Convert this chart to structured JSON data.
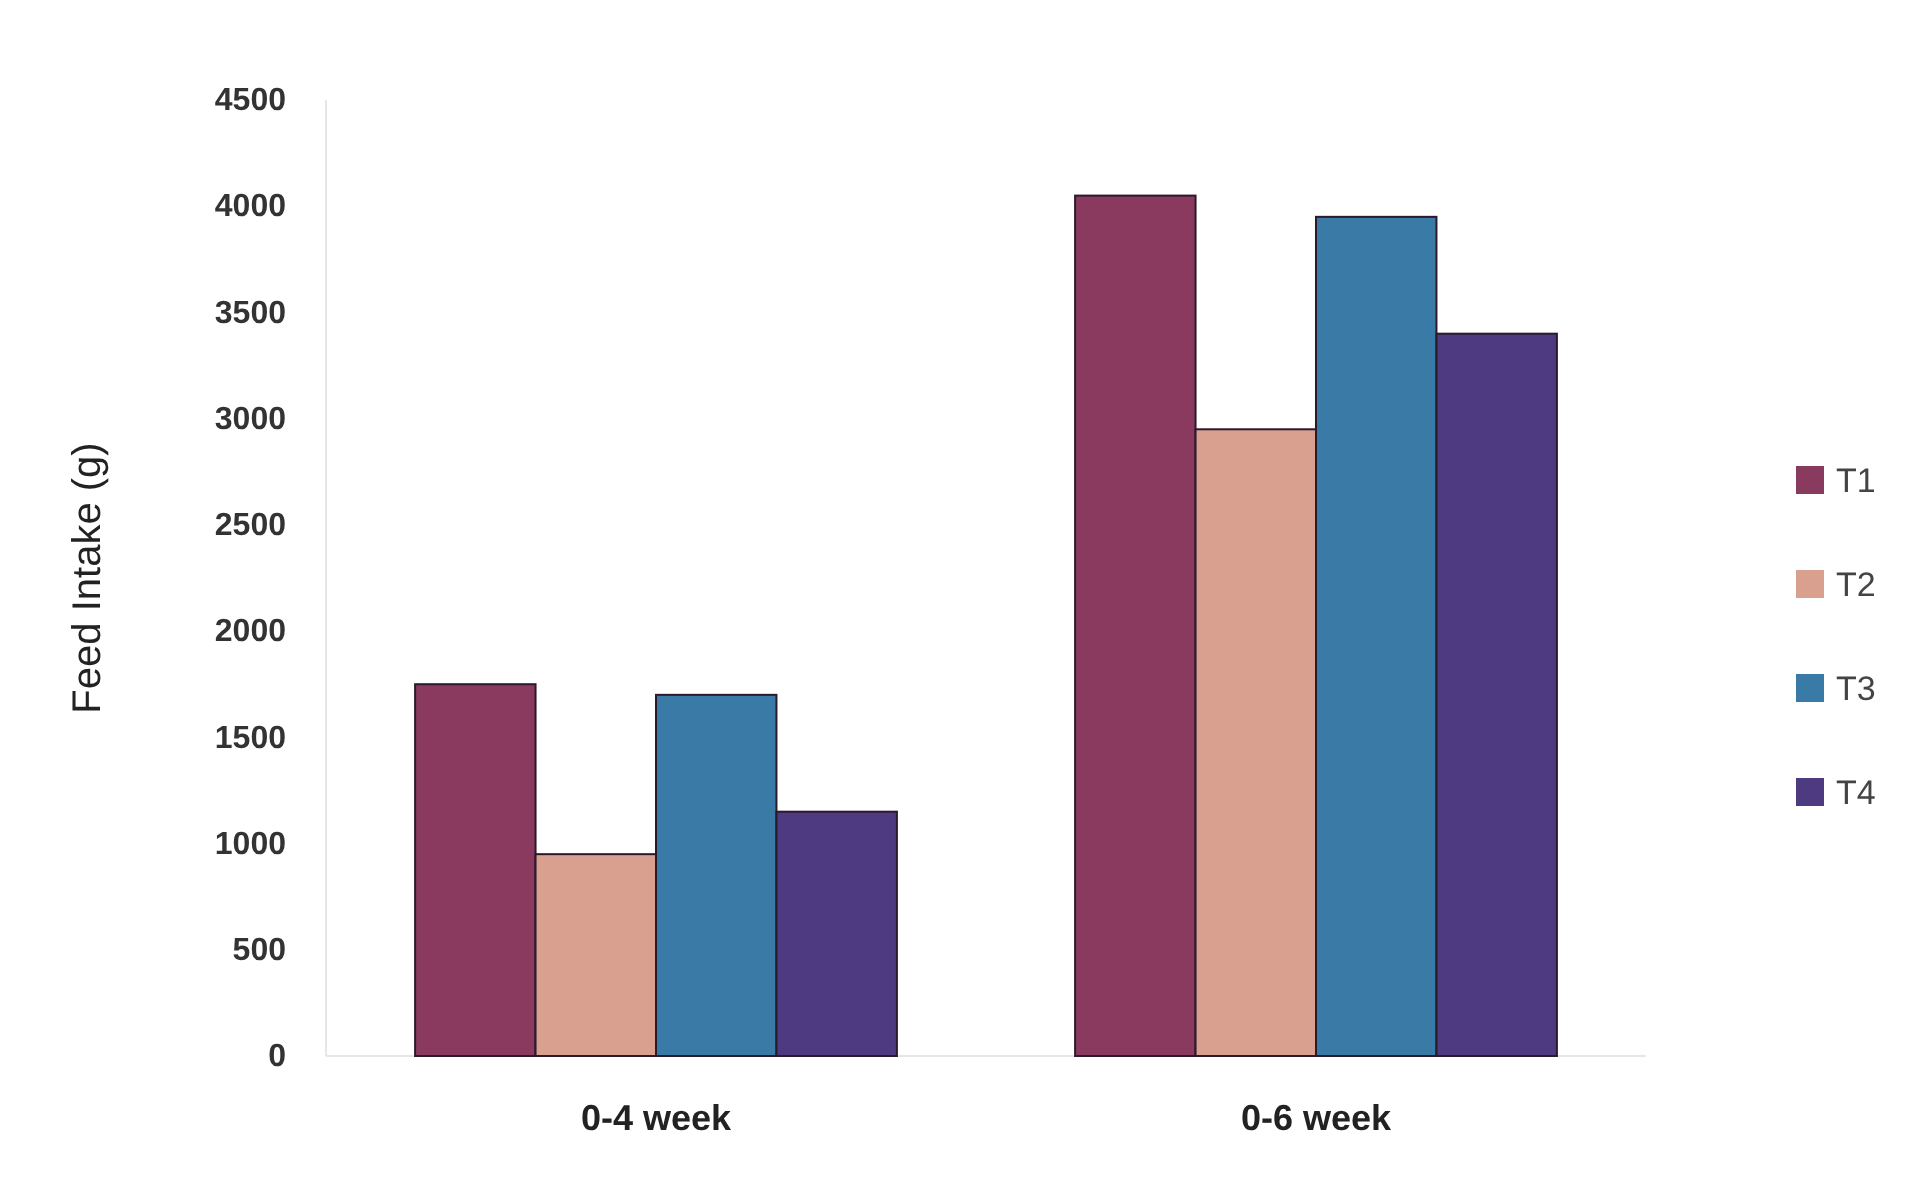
{
  "chart_data": {
    "type": "bar",
    "ylabel": "Feed Intake (g)",
    "categories": [
      "0-4 week",
      "0-6 week"
    ],
    "series": [
      {
        "name": "T1",
        "color": "#8a3a5e",
        "values": [
          1750,
          4050
        ]
      },
      {
        "name": "T2",
        "color": "#d9a08f",
        "values": [
          950,
          2950
        ]
      },
      {
        "name": "T3",
        "color": "#3a7aa6",
        "values": [
          1700,
          3950
        ]
      },
      {
        "name": "T4",
        "color": "#4e3a80",
        "values": [
          1150,
          3400
        ]
      }
    ],
    "ylim": [
      0,
      4500
    ],
    "yticks": [
      0,
      500,
      1000,
      1500,
      2000,
      2500,
      3000,
      3500,
      4000,
      4500
    ],
    "grid": false,
    "legend": "right"
  }
}
